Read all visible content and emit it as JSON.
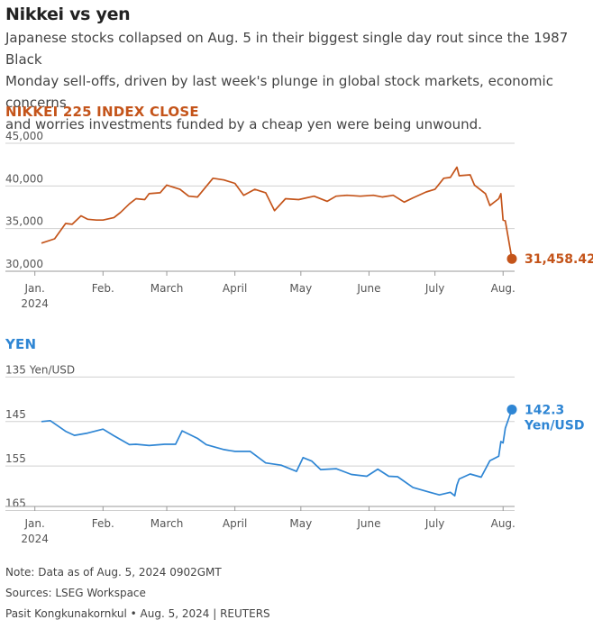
{
  "header": {
    "title": "Nikkei vs yen",
    "subtitle": "Japanese stocks collapsed on Aug. 5 in their biggest single day rout since the 1987 Black\nMonday sell-offs, driven by last week's plunge in global stock markets, economic concerns\nand worries investments funded by a cheap yen were being unwound."
  },
  "colors": {
    "nikkei": "#c4541a",
    "yen": "#2f86d4",
    "grid": "#d0d0d0",
    "axis": "#999999"
  },
  "chart_data": [
    {
      "type": "line",
      "title": "NIKKEI 225 INDEX CLOSE",
      "x_start": "2024-01-04",
      "x_end": "2024-08-05",
      "xticks": [
        "Jan.\n2024",
        "Feb.",
        "March",
        "April",
        "May",
        "June",
        "July",
        "Aug."
      ],
      "ylim": [
        30000,
        45000
      ],
      "yticks": [
        30000,
        35000,
        40000,
        45000
      ],
      "ytick_labels": [
        "30,000",
        "35,000",
        "40,000",
        "45,000"
      ],
      "grid": true,
      "end_label": "31,458.42",
      "series": [
        {
          "x": [
            "2024-01-04",
            "2024-01-10",
            "2024-01-15",
            "2024-01-18",
            "2024-01-22",
            "2024-01-25",
            "2024-01-29",
            "2024-02-01",
            "2024-02-06",
            "2024-02-09",
            "2024-02-13",
            "2024-02-16",
            "2024-02-20",
            "2024-02-22",
            "2024-02-27",
            "2024-03-01",
            "2024-03-07",
            "2024-03-11",
            "2024-03-15",
            "2024-03-22",
            "2024-03-27",
            "2024-04-01",
            "2024-04-05",
            "2024-04-10",
            "2024-04-15",
            "2024-04-19",
            "2024-04-24",
            "2024-04-30",
            "2024-05-07",
            "2024-05-13",
            "2024-05-17",
            "2024-05-22",
            "2024-05-28",
            "2024-06-03",
            "2024-06-07",
            "2024-06-12",
            "2024-06-17",
            "2024-06-21",
            "2024-06-27",
            "2024-07-01",
            "2024-07-05",
            "2024-07-08",
            "2024-07-11",
            "2024-07-12",
            "2024-07-17",
            "2024-07-19",
            "2024-07-24",
            "2024-07-26",
            "2024-07-30",
            "2024-07-31",
            "2024-08-01",
            "2024-08-02",
            "2024-08-05"
          ],
          "y": [
            33300,
            33800,
            35600,
            35500,
            36500,
            36100,
            36000,
            36000,
            36300,
            36900,
            37900,
            38500,
            38400,
            39100,
            39200,
            40100,
            39600,
            38800,
            38700,
            40900,
            40700,
            40300,
            38900,
            39600,
            39200,
            37100,
            38500,
            38400,
            38800,
            38200,
            38800,
            38900,
            38800,
            38900,
            38700,
            38900,
            38100,
            38600,
            39300,
            39600,
            40900,
            41000,
            42200,
            41200,
            41300,
            40100,
            39100,
            37700,
            38500,
            39100,
            36000,
            35900,
            31458
          ]
        }
      ]
    },
    {
      "type": "line",
      "title": "YEN",
      "unit_label": "135 Yen/USD",
      "x_start": "2024-01-04",
      "x_end": "2024-08-05",
      "xticks": [
        "Jan.\n2024",
        "Feb.",
        "March",
        "April",
        "May",
        "June",
        "July",
        "Aug."
      ],
      "ylim": [
        167,
        135
      ],
      "y_inverted": true,
      "yticks": [
        135,
        145,
        155,
        165
      ],
      "ytick_labels": [
        "",
        "145",
        "155",
        "165"
      ],
      "grid": true,
      "end_label": "142.3\nYen/USD",
      "series": [
        {
          "x": [
            "2024-01-04",
            "2024-01-08",
            "2024-01-15",
            "2024-01-19",
            "2024-01-25",
            "2024-02-01",
            "2024-02-06",
            "2024-02-13",
            "2024-02-16",
            "2024-02-22",
            "2024-02-29",
            "2024-03-05",
            "2024-03-08",
            "2024-03-15",
            "2024-03-19",
            "2024-03-27",
            "2024-04-01",
            "2024-04-08",
            "2024-04-15",
            "2024-04-22",
            "2024-04-29",
            "2024-05-02",
            "2024-05-06",
            "2024-05-10",
            "2024-05-17",
            "2024-05-24",
            "2024-05-31",
            "2024-06-05",
            "2024-06-10",
            "2024-06-14",
            "2024-06-21",
            "2024-06-28",
            "2024-07-03",
            "2024-07-08",
            "2024-07-10",
            "2024-07-11",
            "2024-07-12",
            "2024-07-17",
            "2024-07-22",
            "2024-07-26",
            "2024-07-30",
            "2024-07-31",
            "2024-08-01",
            "2024-08-02",
            "2024-08-05"
          ],
          "y": [
            145,
            144.8,
            147.2,
            148.1,
            147.6,
            146.7,
            148.2,
            150.2,
            150.1,
            150.4,
            150.1,
            150.1,
            147.1,
            148.8,
            150.2,
            151.3,
            151.7,
            151.7,
            154.3,
            154.8,
            156.2,
            153.1,
            153.9,
            155.8,
            155.6,
            156.9,
            157.3,
            155.7,
            157.3,
            157.4,
            159.8,
            160.8,
            161.5,
            160.9,
            161.7,
            159.3,
            157.9,
            156.8,
            157.5,
            153.8,
            152.8,
            149.5,
            149.8,
            146.5,
            142.3
          ]
        }
      ]
    }
  ],
  "footer": {
    "note": "Note: Data as of Aug. 5, 2024 0902GMT",
    "sources": "Sources: LSEG Workspace",
    "credit": "Pasit Kongkunakornkul • Aug. 5, 2024 | REUTERS"
  }
}
